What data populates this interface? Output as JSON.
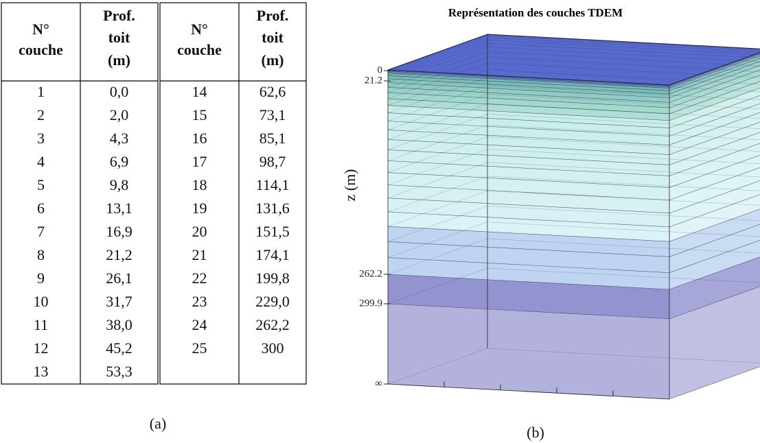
{
  "tables": [
    {
      "columns": [
        [
          "N°",
          "couche"
        ],
        [
          "Prof.",
          "toit",
          "(m)"
        ]
      ],
      "rows": [
        [
          "1",
          "0,0"
        ],
        [
          "2",
          "2,0"
        ],
        [
          "3",
          "4,3"
        ],
        [
          "4",
          "6,9"
        ],
        [
          "5",
          "9,8"
        ],
        [
          "6",
          "13,1"
        ],
        [
          "7",
          "16,9"
        ],
        [
          "8",
          "21,2"
        ],
        [
          "9",
          "26,1"
        ],
        [
          "10",
          "31,7"
        ],
        [
          "11",
          "38,0"
        ],
        [
          "12",
          "45,2"
        ],
        [
          "13",
          "53,3"
        ]
      ]
    },
    {
      "columns": [
        [
          "N°",
          "couche"
        ],
        [
          "Prof.",
          "toit",
          "(m)"
        ]
      ],
      "rows": [
        [
          "14",
          "62,6"
        ],
        [
          "15",
          "73,1"
        ],
        [
          "16",
          "85,1"
        ],
        [
          "17",
          "98,7"
        ],
        [
          "18",
          "114,1"
        ],
        [
          "19",
          "131,6"
        ],
        [
          "20",
          "151,5"
        ],
        [
          "21",
          "174,1"
        ],
        [
          "22",
          "199,8"
        ],
        [
          "23",
          "229,0"
        ],
        [
          "24",
          "262,2"
        ],
        [
          "25",
          "300"
        ]
      ]
    }
  ],
  "caption_a": "(a)",
  "diagram": {
    "title": "Représentation des couches TDEM",
    "axis_label": "z (m)",
    "depth_labels": [
      "0",
      "21.2",
      "262.2",
      "299.9",
      "∞"
    ],
    "caption": "(b)"
  }
}
